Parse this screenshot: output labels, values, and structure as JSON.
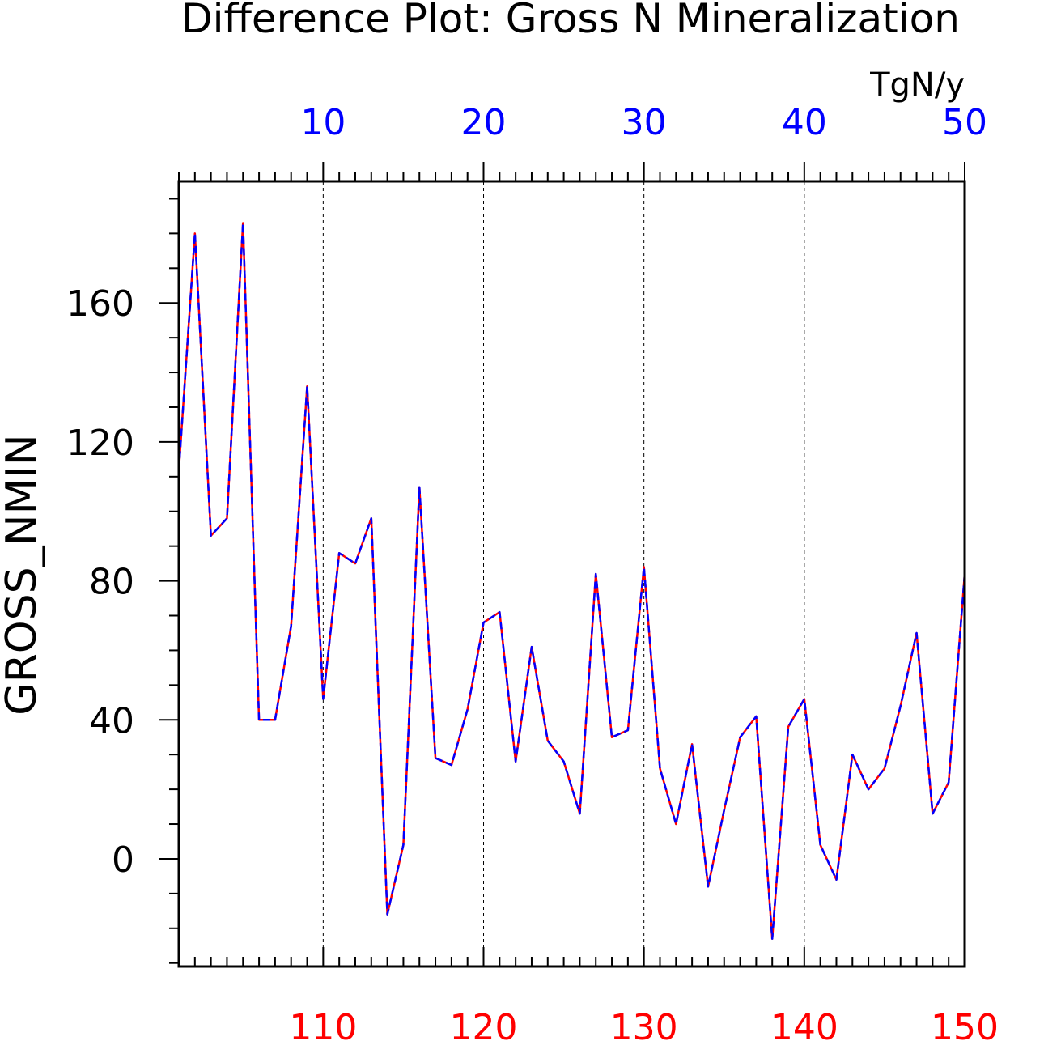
{
  "chart_data": {
    "type": "line",
    "title": "Difference Plot: Gross N Mineralization",
    "units": "TgN/y",
    "ylabel": "GROSS_NMIN",
    "ylim": [
      -31,
      195
    ],
    "yticks": [
      0,
      40,
      80,
      120,
      160
    ],
    "grid_x": true,
    "x_bottom": {
      "range": [
        101,
        150
      ],
      "ticks": [
        110,
        120,
        130,
        140,
        150
      ],
      "color": "#ff0000"
    },
    "x_top": {
      "range": [
        1,
        50
      ],
      "ticks": [
        10,
        20,
        30,
        40,
        50
      ],
      "color": "#0000ff"
    },
    "series": [
      {
        "color": "#ff0000",
        "style": "solid",
        "x": [
          101,
          102,
          103,
          104,
          105,
          106,
          107,
          108,
          109,
          110,
          111,
          112,
          113,
          114,
          115,
          116,
          117,
          118,
          119,
          120,
          121,
          122,
          123,
          124,
          125,
          126,
          127,
          128,
          129,
          130,
          131,
          132,
          133,
          134,
          135,
          136,
          137,
          138,
          139,
          140,
          141,
          142,
          143,
          144,
          145,
          146,
          147,
          148,
          149,
          150
        ],
        "values": [
          112,
          180,
          93,
          98,
          183,
          40,
          40,
          67,
          136,
          46,
          88,
          85,
          98,
          -16,
          4,
          107,
          29,
          27,
          43,
          68,
          71,
          28,
          61,
          34,
          28,
          13,
          82,
          35,
          37,
          84,
          26,
          10,
          33,
          -8,
          14,
          35,
          41,
          -23,
          38,
          46,
          4,
          -6,
          30,
          20,
          26,
          44,
          65,
          13,
          22,
          82
        ]
      },
      {
        "color": "#0000ff",
        "style": "dashed",
        "x": [
          1,
          2,
          3,
          4,
          5,
          6,
          7,
          8,
          9,
          10,
          11,
          12,
          13,
          14,
          15,
          16,
          17,
          18,
          19,
          20,
          21,
          22,
          23,
          24,
          25,
          26,
          27,
          28,
          29,
          30,
          31,
          32,
          33,
          34,
          35,
          36,
          37,
          38,
          39,
          40,
          41,
          42,
          43,
          44,
          45,
          46,
          47,
          48,
          49,
          50
        ],
        "values": [
          112,
          180,
          93,
          98,
          183,
          40,
          40,
          67,
          136,
          46,
          88,
          85,
          98,
          -16,
          4,
          107,
          29,
          27,
          43,
          68,
          71,
          28,
          61,
          34,
          28,
          13,
          82,
          35,
          37,
          84,
          26,
          10,
          33,
          -8,
          14,
          35,
          41,
          -23,
          38,
          46,
          4,
          -6,
          30,
          20,
          26,
          44,
          65,
          13,
          22,
          82
        ]
      }
    ]
  }
}
